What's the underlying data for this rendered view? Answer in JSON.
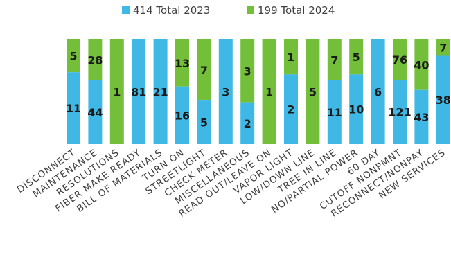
{
  "chart_data": {
    "type": "bar",
    "stacked": "percent",
    "title": "",
    "xlabel": "",
    "ylabel": "",
    "legend_position": "top",
    "grid": false,
    "categories": [
      "DISCONNECT",
      "MAINTENANCE",
      "RESOLUTIONS",
      "FIBER MAKE READY",
      "BILL OF MATERIALS",
      "TURN ON",
      "STREETLIGHT",
      "CHECK METER",
      "MISCELLANEOUS",
      "READ OUT/LEAVE ON",
      "VAPOR LIGHT",
      "LOW/DOWN LINE",
      "TREE IN LINE",
      "NO/PARTIAL POWER",
      "60 DAY",
      "CUTOFF NONPMNT",
      "RECONNECT/NONPAY",
      "NEW SERVICES"
    ],
    "series": [
      {
        "name": "414 Total 2023",
        "color": "#3fb8e6",
        "values": [
          11,
          44,
          0,
          81,
          21,
          16,
          5,
          3,
          2,
          0,
          2,
          0,
          11,
          10,
          6,
          121,
          43,
          38
        ]
      },
      {
        "name": "199 Total 2024",
        "color": "#74bf3a",
        "values": [
          5,
          28,
          1,
          0,
          0,
          13,
          7,
          0,
          3,
          1,
          1,
          5,
          7,
          5,
          0,
          76,
          40,
          7
        ]
      }
    ]
  }
}
